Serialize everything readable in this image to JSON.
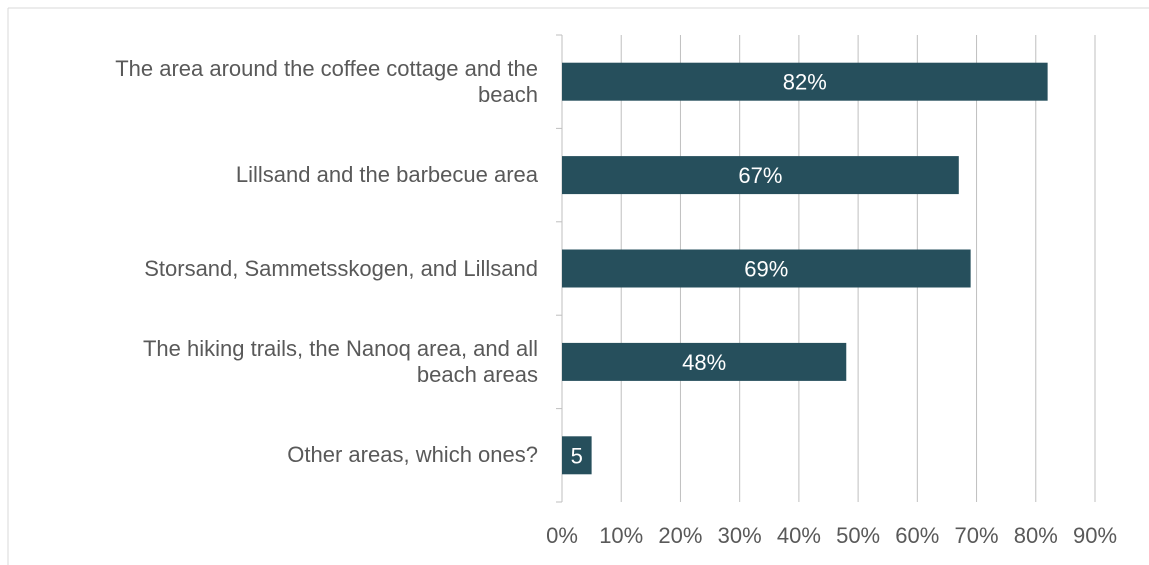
{
  "chart_data": {
    "type": "bar",
    "orientation": "horizontal",
    "categories": [
      "The area around the coffee cottage and the beach",
      "Lillsand and the barbecue area",
      "Storsand, Sammetsskogen, and Lillsand",
      "The hiking trails, the Nanoq area, and all beach areas",
      "Other areas, which ones?"
    ],
    "category_lines": [
      [
        "The area around the coffee cottage and the",
        "beach"
      ],
      [
        "Lillsand and the barbecue area"
      ],
      [
        "Storsand, Sammetsskogen, and Lillsand"
      ],
      [
        "The hiking trails, the Nanoq area, and all",
        "beach areas"
      ],
      [
        "Other areas, which ones?"
      ]
    ],
    "values": [
      82,
      67,
      69,
      48,
      5
    ],
    "data_labels": [
      "82%",
      "67%",
      "69%",
      "48%",
      "5"
    ],
    "xlim": [
      0,
      90
    ],
    "x_ticks": [
      "0%",
      "10%",
      "20%",
      "30%",
      "40%",
      "50%",
      "60%",
      "70%",
      "80%",
      "90%"
    ],
    "grid": true,
    "bar_color": "#264f5c",
    "grid_color": "#bfbfbf",
    "text_color": "#595959",
    "title": "",
    "xlabel": "",
    "ylabel": ""
  }
}
